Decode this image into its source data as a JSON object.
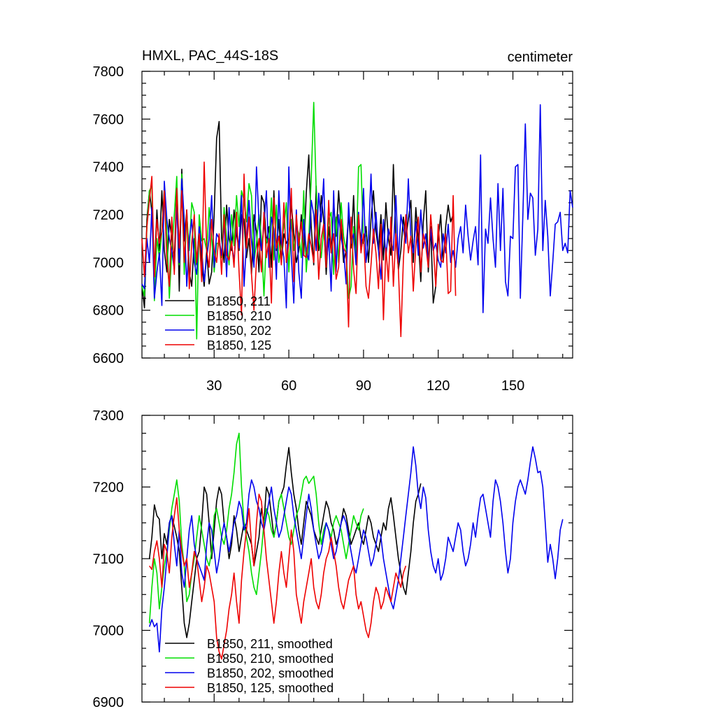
{
  "chart_data": [
    {
      "type": "line",
      "title_left": "HMXL, PAC_44S-18S",
      "title_right": "centimeter",
      "xlim": [
        1,
        174
      ],
      "ylim": [
        6600,
        7800
      ],
      "xticks": [
        30,
        60,
        90,
        120,
        150
      ],
      "yticks": [
        6600,
        6800,
        7000,
        7200,
        7400,
        7600,
        7800
      ],
      "legend_position": "lower-left",
      "series": [
        {
          "name": "B1850, 211",
          "color": "#000000",
          "x_start": 1,
          "values": [
            6900,
            6810,
            7180,
            7300,
            7210,
            6960,
            7220,
            7050,
            7300,
            7050,
            6960,
            7180,
            7100,
            7010,
            7320,
            6880,
            7390,
            7090,
            7220,
            6960,
            6900,
            7100,
            6990,
            7150,
            7000,
            6900,
            7050,
            6910,
            6960,
            7200,
            7520,
            7590,
            7100,
            7000,
            7240,
            7100,
            7050,
            7220,
            7120,
            7050,
            7200,
            7180,
            7020,
            7100,
            6950,
            7200,
            7130,
            6960,
            7280,
            7250,
            7080,
            7150,
            6980,
            7300,
            7050,
            7180,
            7000,
            7120,
            7080,
            7100,
            7250,
            7120,
            7000,
            7050,
            7200,
            7030,
            7290,
            7450,
            7150,
            6990,
            7320,
            7050,
            7280,
            7180,
            6950,
            7150,
            7040,
            7250,
            7110,
            7300,
            7150,
            7000,
            7050,
            7200,
            7060,
            7280,
            7010,
            7170,
            7100,
            7080,
            7150,
            7000,
            7180,
            7300,
            7130,
            7050,
            7200,
            7010,
            7250,
            7100,
            7030,
            7410,
            7100,
            6970,
            7050,
            7190,
            7100,
            7180,
            7260,
            7000,
            7230,
            7100,
            6920,
            7170,
            7300,
            6960,
            7150,
            6830,
            6900,
            7100,
            7200,
            7000,
            7150,
            7240,
            7170,
            7200
          ]
        },
        {
          "name": "B1850, 210",
          "color": "#00dd00",
          "x_start": 1,
          "values": [
            6900,
            6860,
            7150,
            7300,
            7320,
            6840,
            7100,
            7020,
            7130,
            7310,
            7130,
            6850,
            7050,
            7200,
            7360,
            6990,
            7370,
            6950,
            7200,
            7050,
            7250,
            7210,
            6680,
            7200,
            7090,
            7100,
            7050,
            7230,
            7100,
            6960,
            7080,
            7080,
            7020,
            7230,
            7100,
            6990,
            7200,
            7070,
            7280,
            7150,
            7300,
            7260,
            7170,
            7330,
            7280,
            7000,
            7080,
            7200,
            7100,
            6860,
            7100,
            7070,
            7270,
            7010,
            7240,
            7000,
            7080,
            7150,
            7250,
            6960,
            7180,
            7050,
            7150,
            7120,
            7020,
            7300,
            6960,
            7100,
            7350,
            7670,
            7300,
            7100,
            7020,
            7140,
            7010,
            7180,
            7210,
            6950,
            7190,
            7000,
            7250,
            7110,
            7050,
            6850,
            6900,
            7150,
            7010,
            7400,
            7410,
            7080,
            7120
          ]
        },
        {
          "name": "B1850, 202",
          "color": "#0000ee",
          "x_start": 1,
          "values": [
            6910,
            6890,
            7100,
            7000,
            7230,
            6850,
            6960,
            7040,
            6820,
            7340,
            7180,
            7100,
            7050,
            6970,
            7240,
            7000,
            7350,
            7180,
            6900,
            7100,
            7180,
            7000,
            6950,
            7150,
            7050,
            6920,
            7020,
            7100,
            7280,
            6980,
            7120,
            7100,
            7030,
            7170,
            6940,
            7230,
            7070,
            7010,
            7150,
            7060,
            7280,
            6900,
            7080,
            7260,
            7090,
            6980,
            7400,
            7170,
            7050,
            7150,
            7300,
            6980,
            7190,
            7140,
            6930,
            7300,
            7080,
            7020,
            6810,
            7400,
            7030,
            6830,
            7220,
            6960,
            6850,
            7180,
            7050,
            7010,
            7260,
            7200,
            7050,
            7290,
            7170,
            7350,
            6990,
            7100,
            6880,
            7300,
            6960,
            7200,
            7100,
            7050,
            6910,
            7250,
            7080,
            7120,
            6990,
            7210,
            7050,
            7310,
            7000,
            7100,
            7370,
            7080,
            7210,
            7050,
            6930,
            7180,
            7020,
            7140,
            7090,
            7050,
            7280,
            7000,
            7200,
            7140,
            7080,
            7350,
            7100,
            7040,
            7170,
            7030,
            7220,
            7060,
            7120,
            7000,
            7140,
            7050,
            7080,
            7010,
            6980,
            7120,
            7040,
            7160,
            7000,
            7050,
            6980,
            7100,
            7150,
            7040,
            7240,
            7110,
            7010,
            7090,
            7150,
            6990,
            7450,
            6790,
            7140,
            7080,
            7270,
            7100,
            6980,
            7330,
            7050,
            7310,
            6920,
            6860,
            7110,
            7100,
            7400,
            7410,
            6850,
            7200,
            7580,
            7180,
            7290,
            7270,
            7030,
            7140,
            7660,
            7050,
            7260,
            7110,
            6860,
            7000,
            7160,
            7170,
            7210,
            7050,
            7080,
            7040,
            7300,
            7230
          ]
        },
        {
          "name": "B1850, 125",
          "color": "#ee0000",
          "x_start": 1,
          "values": [
            7100,
            6940,
            7150,
            7260,
            7360,
            6940,
            7180,
            7080,
            7130,
            7300,
            7010,
            6900,
            7190,
            6950,
            7310,
            7060,
            7300,
            7000,
            7220,
            6890,
            7080,
            7200,
            7000,
            7120,
            6920,
            7420,
            7050,
            6980,
            7180,
            7050,
            7000,
            7120,
            6950,
            7200,
            7030,
            7010,
            7090,
            6980,
            7210,
            6960,
            6780,
            7370,
            7060,
            7190,
            6950,
            6800,
            7010,
            7100,
            6960,
            7210,
            7020,
            7100,
            6830,
            7270,
            7060,
            7110,
            6990,
            7250,
            7000,
            7080,
            7310,
            6920,
            7200,
            7070,
            7170,
            7030,
            7020,
            7120,
            7070,
            7000,
            7220,
            6930,
            7100,
            7160,
            6980,
            7260,
            7040,
            7120,
            6930,
            6980,
            7180,
            7060,
            7040,
            6730,
            7190,
            6970,
            6870,
            7200,
            7040,
            7120,
            6900,
            6850,
            6990,
            7140,
            7040,
            6890,
            7160,
            6760,
            7060,
            6920,
            7190,
            6900,
            7120,
            6970,
            6690,
            7010,
            7200,
            7040,
            7110,
            6880,
            7070,
            7190,
            6960,
            7120,
            7070,
            6980,
            7200,
            7070,
            6900,
            7160,
            7010,
            7000,
            7120,
            6870,
            6880,
            7280,
            6860
          ]
        }
      ]
    },
    {
      "type": "line",
      "xlim": [
        1,
        174
      ],
      "ylim": [
        6900,
        7300
      ],
      "yticks": [
        6900,
        7000,
        7100,
        7200,
        7300
      ],
      "legend_position": "lower-left",
      "series": [
        {
          "name": "B1850, 211, smoothed",
          "color": "#000000",
          "x_start": 4,
          "values": [
            7100,
            7130,
            7175,
            7160,
            7155,
            7100,
            7135,
            7120,
            7150,
            7160,
            7145,
            7130,
            7110,
            7060,
            7010,
            6990,
            7010,
            7040,
            7070,
            7100,
            7110,
            7150,
            7200,
            7190,
            7150,
            7100,
            7140,
            7180,
            7200,
            7190,
            7150,
            7130,
            7100,
            7120,
            7160,
            7140,
            7110,
            7130,
            7150,
            7140,
            7130,
            7120,
            7090,
            7110,
            7130,
            7170,
            7150,
            7200,
            7190,
            7160,
            7130,
            7150,
            7180,
            7190,
            7200,
            7230,
            7255,
            7220,
            7190,
            7170,
            7140,
            7120,
            7150,
            7180,
            7170,
            7160,
            7140,
            7130,
            7120,
            7140,
            7160,
            7180,
            7170,
            7150,
            7140,
            7120,
            7130,
            7150,
            7170,
            7160,
            7140,
            7120,
            7130,
            7140,
            7150,
            7130,
            7120,
            7140,
            7160,
            7150,
            7130,
            7120,
            7110,
            7130,
            7150,
            7140,
            7170,
            7185,
            7160,
            7130,
            7100,
            7080,
            7060,
            7050,
            7080,
            7110,
            7150,
            7180,
            7190,
            7205
          ]
        },
        {
          "name": "B1850, 210, smoothed",
          "color": "#00dd00",
          "x_start": 4,
          "values": [
            7010,
            7060,
            7100,
            7080,
            7030,
            7060,
            7090,
            7110,
            7140,
            7170,
            7190,
            7210,
            7180,
            7120,
            7090,
            7040,
            7050,
            7080,
            7100,
            7130,
            7160,
            7140,
            7120,
            7100,
            7090,
            7110,
            7160,
            7170,
            7150,
            7130,
            7120,
            7140,
            7170,
            7190,
            7220,
            7260,
            7275,
            7200,
            7150,
            7130,
            7110,
            7080,
            7060,
            7050,
            7080,
            7110,
            7150,
            7170,
            7160,
            7140,
            7130,
            7150,
            7180,
            7190,
            7170,
            7150,
            7130,
            7120,
            7140,
            7160,
            7170,
            7190,
            7210,
            7215,
            7205,
            7210,
            7215,
            7190,
            7150,
            7120,
            7140,
            7150,
            7140,
            7130,
            7150,
            7160,
            7150,
            7140,
            7120,
            7100,
            7120,
            7140,
            7160,
            7150,
            7140,
            7160,
            7170
          ]
        },
        {
          "name": "B1850, 202, smoothed",
          "color": "#0000ee",
          "x_start": 4,
          "values": [
            7005,
            7015,
            7005,
            7010,
            6970,
            7030,
            7060,
            7100,
            7150,
            7160,
            7120,
            7090,
            7140,
            7080,
            7060,
            7100,
            7140,
            7160,
            7120,
            7100,
            7090,
            7080,
            7070,
            7120,
            7150,
            7140,
            7110,
            7080,
            7100,
            7130,
            7150,
            7130,
            7110,
            7130,
            7150,
            7160,
            7180,
            7170,
            7140,
            7150,
            7190,
            7210,
            7200,
            7180,
            7170,
            7150,
            7140,
            7160,
            7180,
            7200,
            7170,
            7150,
            7130,
            7140,
            7160,
            7180,
            7200,
            7190,
            7160,
            7140,
            7120,
            7100,
            7130,
            7160,
            7190,
            7170,
            7140,
            7120,
            7100,
            7110,
            7130,
            7150,
            7140,
            7120,
            7100,
            7110,
            7130,
            7150,
            7160,
            7150,
            7130,
            7110,
            7090,
            7080,
            7100,
            7120,
            7140,
            7130,
            7110,
            7090,
            7100,
            7120,
            7140,
            7130,
            7100,
            7080,
            7060,
            7040,
            7030,
            7050,
            7070,
            7100,
            7130,
            7160,
            7190,
            7220,
            7256,
            7230,
            7190,
            7170,
            7200,
            7185,
            7140,
            7110,
            7090,
            7080,
            7100,
            7070,
            7080,
            7100,
            7130,
            7120,
            7110,
            7130,
            7150,
            7140,
            7110,
            7090,
            7100,
            7120,
            7150,
            7130,
            7160,
            7185,
            7190,
            7170,
            7150,
            7130,
            7180,
            7210,
            7200,
            7180,
            7150,
            7110,
            7080,
            7100,
            7150,
            7180,
            7200,
            7210,
            7200,
            7190,
            7210,
            7235,
            7256,
            7240,
            7220,
            7222,
            7200,
            7150,
            7095,
            7120,
            7100,
            7072,
            7100,
            7140,
            7155
          ]
        },
        {
          "name": "B1850, 125, smoothed",
          "color": "#ee0000",
          "x_start": 4,
          "values": [
            7090,
            7085,
            7110,
            7125,
            7100,
            7060,
            7120,
            7110,
            7080,
            7130,
            7160,
            7185,
            7140,
            7110,
            7090,
            7100,
            7060,
            7080,
            7110,
            7100,
            7070,
            7040,
            7060,
            7090,
            7080,
            7060,
            7040,
            6990,
            6970,
            6960,
            6980,
            7000,
            7030,
            7050,
            7080,
            7040,
            7010,
            7070,
            7110,
            7140,
            7170,
            7120,
            7090,
            7150,
            7190,
            7180,
            7140,
            7100,
            7070,
            7040,
            7010,
            7040,
            7080,
            7110,
            7080,
            7060,
            7100,
            7140,
            7110,
            7050,
            7030,
            7010,
            7040,
            7060,
            7080,
            7100,
            7060,
            7040,
            7030,
            7050,
            7080,
            7100,
            7110,
            7130,
            7110,
            7090,
            7060,
            7040,
            7030,
            7050,
            7070,
            7080,
            7090,
            7050,
            7030,
            7040,
            7020,
            7000,
            6990,
            7010,
            7040,
            7060,
            7050,
            7030,
            7040,
            7060,
            7050,
            7040,
            7060,
            7080,
            7070,
            7060,
            7080,
            7090
          ]
        }
      ]
    }
  ]
}
